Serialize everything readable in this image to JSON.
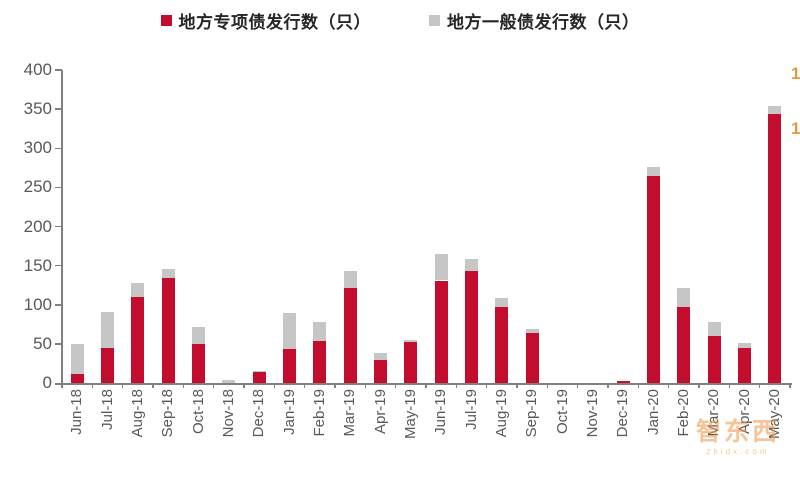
{
  "chart_data": {
    "type": "bar",
    "stacked": true,
    "title": "",
    "xlabel": "",
    "ylabel": "",
    "categories": [
      "Jun-18",
      "Jul-18",
      "Aug-18",
      "Sep-18",
      "Oct-18",
      "Nov-18",
      "Dec-18",
      "Jan-19",
      "Feb-19",
      "Mar-19",
      "Apr-19",
      "May-19",
      "Jun-19",
      "Jul-19",
      "Aug-19",
      "Sep-19",
      "Oct-19",
      "Nov-19",
      "Dec-19",
      "Jan-20",
      "Feb-20",
      "Mar-20",
      "Apr-20",
      "May-20"
    ],
    "series": [
      {
        "name": "地方专项债发行数（只）",
        "color": "#C30D2E",
        "values": [
          12,
          45,
          110,
          134,
          50,
          0,
          14,
          44,
          54,
          121,
          30,
          52,
          131,
          143,
          97,
          64,
          0,
          0,
          3,
          264,
          97,
          60,
          45,
          344
        ]
      },
      {
        "name": "地方一般债发行数（只）",
        "color": "#C6C6C6",
        "values": [
          38,
          46,
          18,
          12,
          21,
          4,
          2,
          45,
          24,
          22,
          8,
          3,
          34,
          15,
          12,
          5,
          0,
          0,
          0,
          12,
          24,
          18,
          6,
          10
        ]
      }
    ],
    "ylim": [
      0,
      400
    ],
    "y_ticks": [
      0,
      50,
      100,
      150,
      200,
      250,
      300,
      350,
      400
    ],
    "grid": false,
    "legend_position": "top",
    "secondary_axis_partial_labels": [
      "1",
      "1"
    ]
  },
  "colors": {
    "special_bar": "#C30D2E",
    "general_bar": "#C6C6C6",
    "axis": "#808080",
    "tick_label": "#595959",
    "secondary_label": "#E19A45",
    "watermark": "#EE9646"
  },
  "watermark": {
    "title": "智东西",
    "domain": "zhidx.com"
  }
}
